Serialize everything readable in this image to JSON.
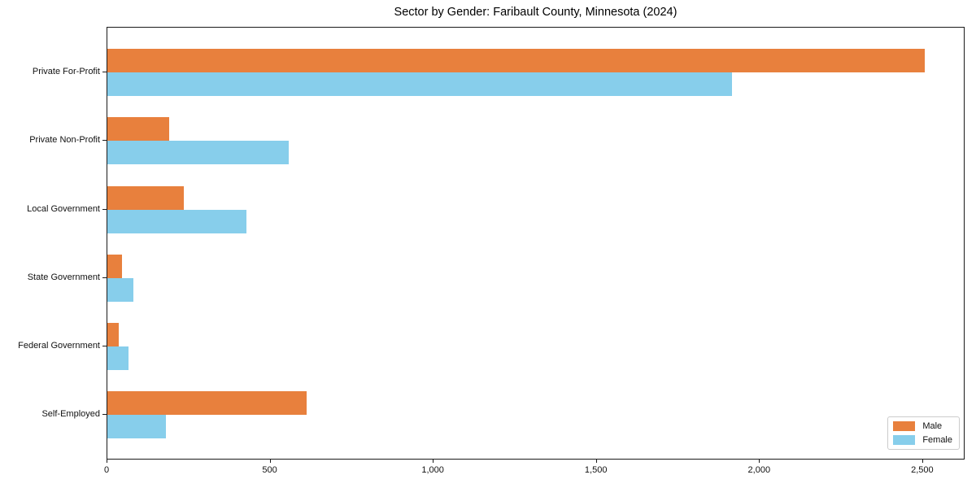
{
  "chart_data": {
    "type": "bar",
    "orientation": "horizontal",
    "title": "Sector by Gender: Faribault County, Minnesota (2024)",
    "xlabel": "",
    "ylabel": "",
    "categories": [
      "Private For-Profit",
      "Private Non-Profit",
      "Local Government",
      "State Government",
      "Federal Government",
      "Self-Employed"
    ],
    "series": [
      {
        "name": "Male",
        "color": "#e8803d",
        "values": [
          2505,
          190,
          235,
          45,
          35,
          610
        ]
      },
      {
        "name": "Female",
        "color": "#87ceeb",
        "values": [
          1915,
          555,
          425,
          80,
          65,
          180
        ]
      }
    ],
    "xlim": [
      0,
      2630
    ],
    "xticks": [
      0,
      500,
      1000,
      1500,
      2000,
      2500
    ],
    "xtick_labels": [
      "0",
      "500",
      "1,000",
      "1,500",
      "2,000",
      "2,500"
    ],
    "grid": false,
    "legend_position": "lower right",
    "background_color": "#ffffff",
    "spine_color": "#1a1a1a"
  }
}
